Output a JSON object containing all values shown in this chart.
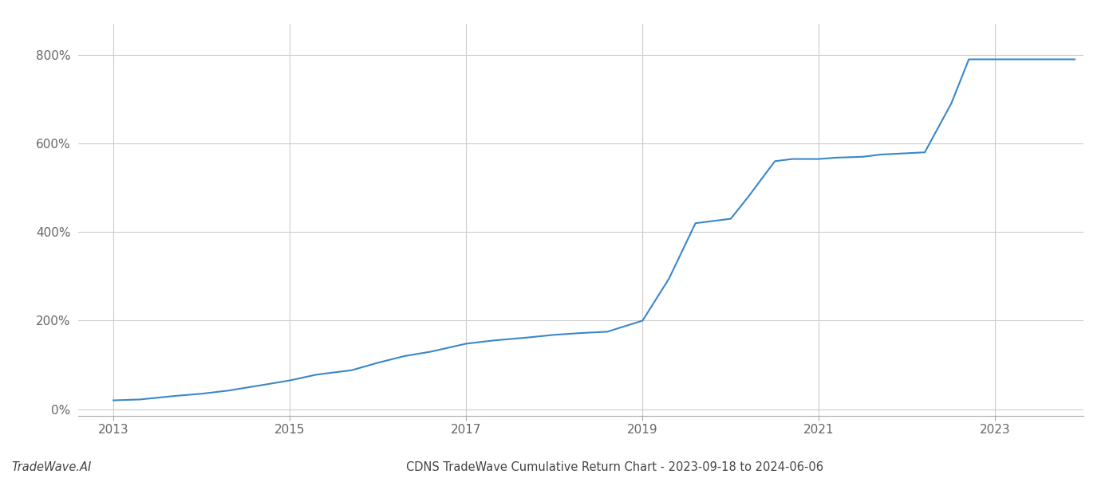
{
  "title": "CDNS TradeWave Cumulative Return Chart - 2023-09-18 to 2024-06-06",
  "watermark": "TradeWave.AI",
  "line_color": "#3a87c8",
  "background_color": "#ffffff",
  "grid_color": "#cccccc",
  "x_years": [
    2013.0,
    2013.3,
    2013.7,
    2014.0,
    2014.3,
    2014.7,
    2015.0,
    2015.3,
    2015.7,
    2016.0,
    2016.3,
    2016.6,
    2017.0,
    2017.3,
    2017.7,
    2018.0,
    2018.3,
    2018.6,
    2019.0,
    2019.3,
    2019.6,
    2020.0,
    2020.2,
    2020.5,
    2020.7,
    2021.0,
    2021.2,
    2021.5,
    2021.7,
    2022.0,
    2022.2,
    2022.5,
    2022.7,
    2023.0,
    2023.5,
    2023.9
  ],
  "y_values": [
    20,
    22,
    30,
    35,
    42,
    55,
    65,
    78,
    88,
    105,
    120,
    130,
    148,
    155,
    162,
    168,
    172,
    175,
    200,
    295,
    420,
    430,
    480,
    560,
    565,
    565,
    568,
    570,
    575,
    578,
    580,
    690,
    790,
    790,
    790,
    790
  ],
  "xticks": [
    2013,
    2015,
    2017,
    2019,
    2021,
    2023
  ],
  "yticks": [
    0,
    200,
    400,
    600,
    800
  ],
  "ylim": [
    -15,
    870
  ],
  "xlim": [
    2012.6,
    2024.0
  ],
  "title_fontsize": 10.5,
  "watermark_fontsize": 10.5,
  "axis_label_fontsize": 11,
  "line_width": 1.5
}
